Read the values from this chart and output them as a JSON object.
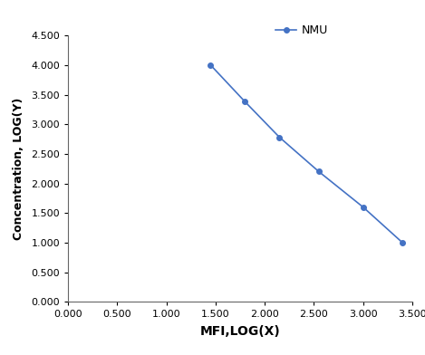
{
  "x": [
    1.45,
    1.8,
    2.15,
    2.55,
    3.0,
    3.4
  ],
  "y": [
    4.0,
    3.38,
    2.78,
    2.2,
    1.6,
    1.0
  ],
  "line_color": "#4472C4",
  "marker": "o",
  "marker_size": 4,
  "legend_label": "NMU",
  "xlabel": "MFI,LOG(X)",
  "ylabel": "Concentration, LOG(Y)",
  "xlim": [
    0.0,
    3.5
  ],
  "ylim": [
    0.0,
    4.5
  ],
  "xticks": [
    0.0,
    0.5,
    1.0,
    1.5,
    2.0,
    2.5,
    3.0,
    3.5
  ],
  "yticks": [
    0.0,
    0.5,
    1.0,
    1.5,
    2.0,
    2.5,
    3.0,
    3.5,
    4.0,
    4.5
  ],
  "xlabel_fontsize": 10,
  "ylabel_fontsize": 9,
  "tick_fontsize": 8,
  "legend_fontsize": 9,
  "background_color": "#ffffff"
}
